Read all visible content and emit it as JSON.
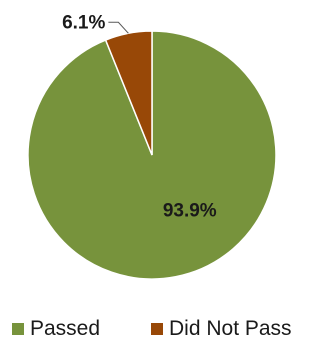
{
  "chart_data": {
    "type": "pie",
    "title": "",
    "slices": [
      {
        "name": "Passed",
        "value": 93.9,
        "label": "93.9%",
        "color": "#77933C"
      },
      {
        "name": "Did Not Pass",
        "value": 6.1,
        "label": "6.1%",
        "color": "#984807"
      }
    ],
    "start_angle": "12 o'clock",
    "direction": "counterclockwise from top for Did Not Pass slice",
    "legend_position": "bottom"
  }
}
